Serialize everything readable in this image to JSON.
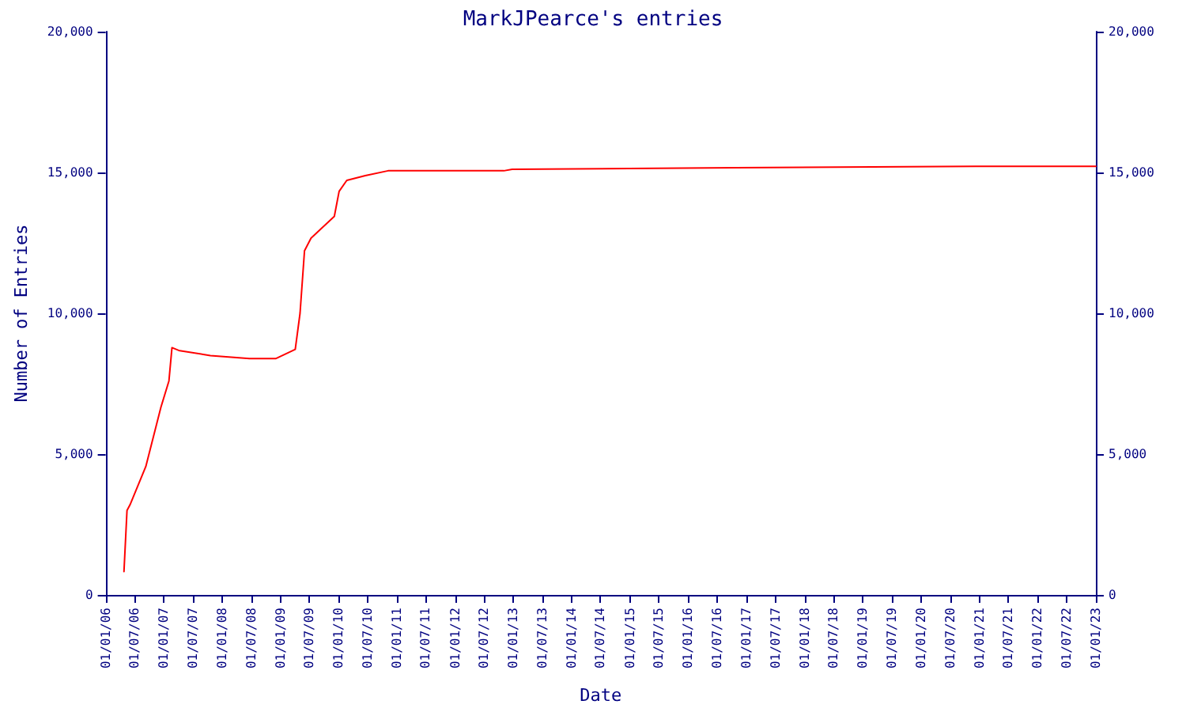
{
  "chart_data": {
    "type": "line",
    "title": "MarkJPearce's entries",
    "xlabel": "Date",
    "ylabel": "Number of Entries",
    "x": [
      "2006-04-26",
      "2006-05-15",
      "2006-06-03",
      "2006-09-10",
      "2006-12-14",
      "2007-02-02",
      "2007-02-21",
      "2007-04-10",
      "2007-10-20",
      "2008-06-21",
      "2008-12-02",
      "2009-04-04",
      "2009-05-04",
      "2009-06-01",
      "2009-07-12",
      "2009-12-05",
      "2010-01-04",
      "2010-02-21",
      "2010-06-17",
      "2010-11-07",
      "2012-11-02",
      "2012-12-24",
      "2016-10-26",
      "2020-12-06",
      "2023-01-01"
    ],
    "series": [
      {
        "color": "#ff0000",
        "values": [
          830,
          3000,
          3200,
          4560,
          6670,
          7600,
          8780,
          8670,
          8500,
          8390,
          8390,
          8720,
          10000,
          12220,
          12670,
          13440,
          14330,
          14720,
          14890,
          15060,
          15060,
          15110,
          15170,
          15220,
          15220
        ]
      }
    ],
    "xlim": [
      "2006-01-01",
      "2023-01-01"
    ],
    "xticks": [
      {
        "value": "2006-01-01",
        "label": "01/01/06"
      },
      {
        "value": "2006-07-01",
        "label": "01/07/06"
      },
      {
        "value": "2007-01-01",
        "label": "01/01/07"
      },
      {
        "value": "2007-07-01",
        "label": "01/07/07"
      },
      {
        "value": "2008-01-01",
        "label": "01/01/08"
      },
      {
        "value": "2008-07-01",
        "label": "01/07/08"
      },
      {
        "value": "2009-01-01",
        "label": "01/01/09"
      },
      {
        "value": "2009-07-01",
        "label": "01/07/09"
      },
      {
        "value": "2010-01-01",
        "label": "01/01/10"
      },
      {
        "value": "2010-07-01",
        "label": "01/07/10"
      },
      {
        "value": "2011-01-01",
        "label": "01/01/11"
      },
      {
        "value": "2011-07-01",
        "label": "01/07/11"
      },
      {
        "value": "2012-01-01",
        "label": "01/01/12"
      },
      {
        "value": "2012-07-01",
        "label": "01/07/12"
      },
      {
        "value": "2013-01-01",
        "label": "01/01/13"
      },
      {
        "value": "2013-07-01",
        "label": "01/07/13"
      },
      {
        "value": "2014-01-01",
        "label": "01/01/14"
      },
      {
        "value": "2014-07-01",
        "label": "01/07/14"
      },
      {
        "value": "2015-01-01",
        "label": "01/01/15"
      },
      {
        "value": "2015-07-01",
        "label": "01/07/15"
      },
      {
        "value": "2016-01-01",
        "label": "01/01/16"
      },
      {
        "value": "2016-07-01",
        "label": "01/07/16"
      },
      {
        "value": "2017-01-01",
        "label": "01/01/17"
      },
      {
        "value": "2017-07-01",
        "label": "01/07/17"
      },
      {
        "value": "2018-01-01",
        "label": "01/01/18"
      },
      {
        "value": "2018-07-01",
        "label": "01/07/18"
      },
      {
        "value": "2019-01-01",
        "label": "01/01/19"
      },
      {
        "value": "2019-07-01",
        "label": "01/07/19"
      },
      {
        "value": "2020-01-01",
        "label": "01/01/20"
      },
      {
        "value": "2020-07-01",
        "label": "01/07/20"
      },
      {
        "value": "2021-01-01",
        "label": "01/01/21"
      },
      {
        "value": "2021-07-01",
        "label": "01/07/21"
      },
      {
        "value": "2022-01-01",
        "label": "01/01/22"
      },
      {
        "value": "2022-07-01",
        "label": "01/07/22"
      },
      {
        "value": "2023-01-01",
        "label": "01/01/23"
      }
    ],
    "ylim": [
      0,
      20000
    ],
    "yticks": [
      0,
      {
        "value": 5000,
        "label": "5,000"
      },
      {
        "value": 10000,
        "label": "10,000"
      },
      {
        "value": 15000,
        "label": "15,000"
      },
      {
        "value": 20000,
        "label": "20,000"
      }
    ],
    "y2lim": [
      0,
      20000
    ],
    "y2ticks": [
      0,
      {
        "value": 5000,
        "label": "5,000"
      },
      {
        "value": 10000,
        "label": "10,000"
      },
      {
        "value": 15000,
        "label": "15,000"
      },
      {
        "value": 20000,
        "label": "20,000"
      }
    ],
    "grid": false,
    "marker": "none",
    "line_style": "solid"
  }
}
